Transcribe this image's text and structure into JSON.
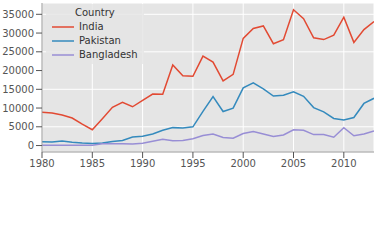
{
  "chart_data": {
    "type": "line",
    "legend_title": "Country",
    "legend": "upper left",
    "grid": true,
    "x": [
      1980,
      1981,
      1982,
      1983,
      1984,
      1985,
      1986,
      1987,
      1988,
      1989,
      1990,
      1991,
      1992,
      1993,
      1994,
      1995,
      1996,
      1997,
      1998,
      1999,
      2000,
      2001,
      2002,
      2003,
      2004,
      2005,
      2006,
      2007,
      2008,
      2009,
      2010,
      2011,
      2012,
      2013
    ],
    "series": [
      {
        "name": "India",
        "color": "#E24A33",
        "values": [
          8880,
          8670,
          8147,
          7338,
          5704,
          4211,
          7150,
          10189,
          11522,
          10343,
          12041,
          13734,
          13673,
          21496,
          18620,
          18489,
          23859,
          22268,
          17241,
          18974,
          28572,
          31223,
          31889,
          27155,
          28235,
          36210,
          33848,
          28742,
          28261,
          29456,
          34235,
          27509,
          30933,
          33087
        ]
      },
      {
        "name": "Pakistan",
        "color": "#348ABD",
        "values": [
          978,
          972,
          1201,
          900,
          668,
          514,
          691,
          1072,
          1334,
          2261,
          2470,
          3079,
          4071,
          4777,
          4666,
          4994,
          9125,
          13073,
          9068,
          9979,
          15400,
          16708,
          15110,
          13205,
          13399,
          14314,
          13127,
          10124,
          8994,
          7217,
          6811,
          7468,
          11227,
          12603
        ]
      },
      {
        "name": "Bangladesh",
        "color": "#988ED5",
        "values": [
          83,
          84,
          86,
          81,
          98,
          92,
          486,
          503,
          476,
          387,
          611,
          1115,
          1655,
          1280,
          1361,
          1791,
          2652,
          3069,
          2143,
          1977,
          3220,
          3754,
          3080,
          2418,
          2826,
          4204,
          4079,
          2917,
          2965,
          2216,
          4741,
          2596,
          3085,
          3900
        ]
      }
    ],
    "xlim": [
      1980,
      2013
    ],
    "xticks": [
      1980,
      1985,
      1990,
      1995,
      2000,
      2005,
      2010
    ],
    "ylim": [
      -1723,
      38016
    ],
    "yticks": [
      0,
      5000,
      10000,
      15000,
      20000,
      25000,
      30000,
      35000
    ]
  }
}
